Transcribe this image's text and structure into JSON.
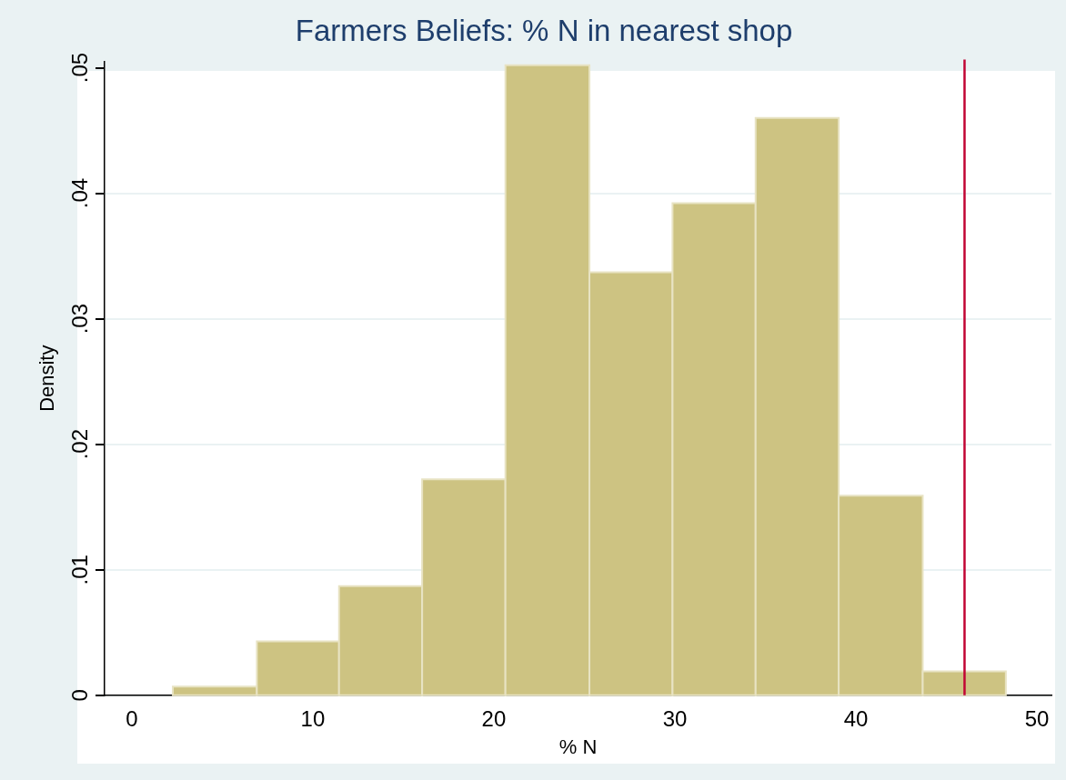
{
  "chart_data": {
    "type": "histogram",
    "title": "Farmers Beliefs: % N in nearest shop",
    "xlabel": "% N",
    "ylabel": "Density",
    "bins": [
      2.27,
      6.91,
      11.45,
      16.04,
      20.64,
      25.28,
      29.87,
      34.46,
      39.05,
      43.69,
      48.28
    ],
    "values": [
      0.0007,
      0.0043,
      0.0087,
      0.0172,
      0.0502,
      0.0337,
      0.0392,
      0.046,
      0.0159,
      0.0019
    ],
    "color": "#cdc382",
    "xlim": [
      -1.5,
      50.8
    ],
    "xticks": [
      0,
      10,
      20,
      30,
      40,
      50
    ],
    "ylim": [
      0,
      0.0505
    ],
    "yticks": [
      {
        "value": 0,
        "label": "0"
      },
      {
        "value": 0.01,
        "label": ".01"
      },
      {
        "value": 0.02,
        "label": ".02"
      },
      {
        "value": 0.03,
        "label": ".03"
      },
      {
        "value": 0.04,
        "label": ".04"
      },
      {
        "value": 0.05,
        "label": ".05"
      }
    ],
    "grid": "y",
    "ref_lines": [
      {
        "axis": "x",
        "value": 46,
        "color": "#c10534"
      }
    ]
  }
}
